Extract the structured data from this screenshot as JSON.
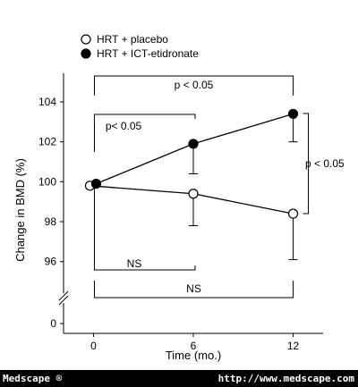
{
  "chart_data": {
    "type": "line",
    "title": "",
    "xlabel": "Time (mo.)",
    "ylabel": "Change in BMD (%)",
    "x": [
      0,
      6,
      12
    ],
    "x_ticks": [
      "0",
      "6",
      "12"
    ],
    "y_ticks": [
      "0",
      "96",
      "98",
      "100",
      "102",
      "104"
    ],
    "xlim": [
      -1.8,
      13.8
    ],
    "ylim": [
      95,
      105.2
    ],
    "y_axis_break": true,
    "grid": false,
    "legend_position": "top-left",
    "series": [
      {
        "name": "HRT + placebo",
        "marker": "open-circle",
        "values": [
          99.8,
          99.4,
          98.4
        ],
        "error": [
          0,
          1.6,
          2.3
        ]
      },
      {
        "name": "HRT + ICT-etidronate",
        "marker": "filled-circle",
        "values": [
          99.9,
          101.9,
          103.4
        ],
        "error": [
          0,
          1.5,
          1.4
        ]
      }
    ],
    "annotations": [
      {
        "text": "p < 0.05",
        "from": 0,
        "to": 12,
        "level": 103.5
      },
      {
        "text": "p< 0.05",
        "from": 0,
        "to": 6,
        "level": 101.5
      },
      {
        "text": "p < 0.05",
        "between": "series at 12 mo.",
        "position": "right"
      },
      {
        "text": "NS",
        "from": 0,
        "to": 6,
        "level": 96
      },
      {
        "text": "NS",
        "from": 0,
        "to": 12,
        "level": 94.3
      }
    ]
  },
  "footer": {
    "left": "Medscape ®",
    "right": "http://www.medscape.com"
  }
}
